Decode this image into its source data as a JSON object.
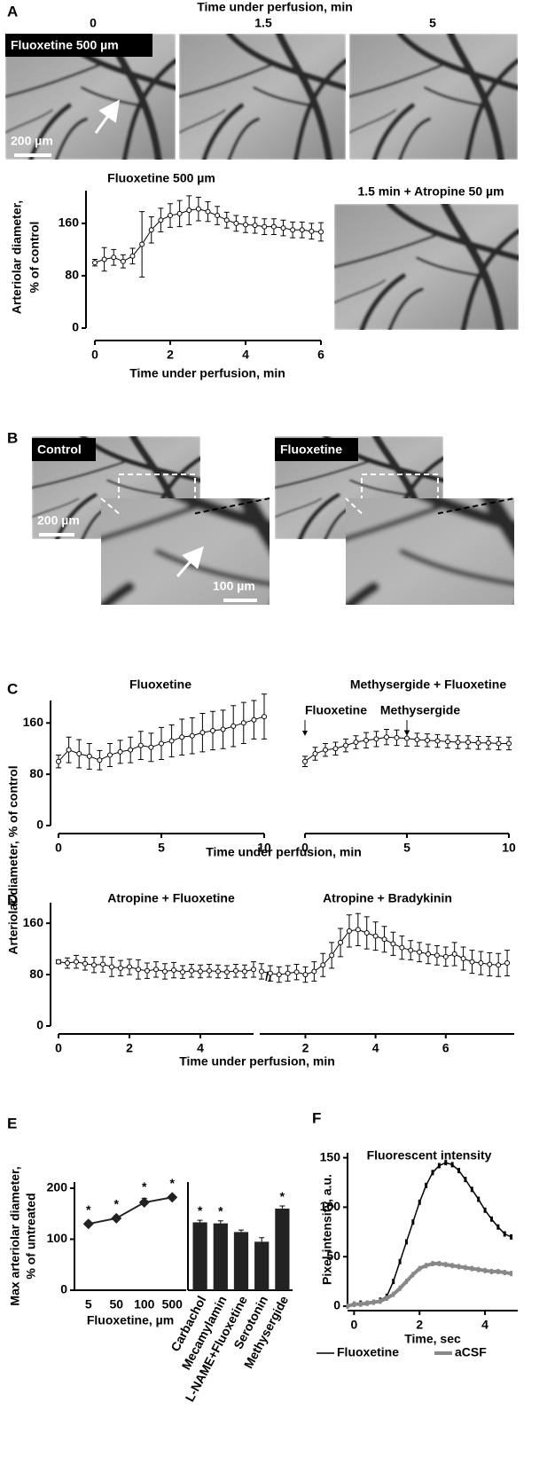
{
  "panel_labels": [
    "A",
    "B",
    "C",
    "D",
    "E",
    "F"
  ],
  "panel_a": {
    "title": "Time under perfusion, min",
    "time_labels": [
      "0",
      "1.5",
      "5"
    ],
    "image_label": "Fluoxetine 500 µm",
    "scale_bar": "200 µm",
    "inset_title": "1.5 min + Atropine 50 µm"
  },
  "panel_b": {
    "control_label": "Control",
    "fluoxetine_label": "Fluoxetine",
    "scale_bar": "200 µm",
    "inset_scale_bar": "100 µm"
  },
  "chart_data": [
    {
      "type": "errorline",
      "title": "Fluoxetine 500 µm",
      "y_label": "Arteriolar diameter,",
      "y_label_2": "% of control",
      "x_label": "Time under perfusion, min",
      "x": [
        0,
        0.25,
        0.5,
        0.75,
        1,
        1.25,
        1.5,
        1.75,
        2,
        2.25,
        2.5,
        2.75,
        3,
        3.25,
        3.5,
        3.75,
        4,
        4.25,
        4.5,
        4.75,
        5,
        5.25,
        5.5,
        5.75,
        6
      ],
      "values": [
        100,
        105,
        108,
        102,
        110,
        128,
        150,
        165,
        172,
        175,
        180,
        182,
        178,
        172,
        165,
        160,
        158,
        157,
        155,
        155,
        153,
        150,
        150,
        148,
        147
      ],
      "errors": [
        5,
        18,
        12,
        10,
        12,
        50,
        20,
        18,
        18,
        20,
        22,
        18,
        15,
        14,
        12,
        12,
        12,
        12,
        12,
        12,
        12,
        12,
        12,
        12,
        14
      ],
      "xlim": [
        0,
        6
      ],
      "ylim": [
        0,
        210
      ],
      "xticks": [
        0,
        2,
        4,
        6
      ],
      "yticks": [
        0,
        80,
        160
      ]
    },
    {
      "type": "errorline",
      "title": "Fluoxetine",
      "y_label": "Arteriolar diameter, % of control",
      "x_label": "Time under perfusion, min",
      "x": [
        0,
        0.5,
        1,
        1.5,
        2,
        2.5,
        3,
        3.5,
        4,
        4.5,
        5,
        5.5,
        6,
        6.5,
        7,
        7.5,
        8,
        8.5,
        9,
        9.5,
        10
      ],
      "values": [
        100,
        118,
        112,
        108,
        102,
        110,
        115,
        118,
        125,
        122,
        128,
        132,
        138,
        140,
        145,
        148,
        150,
        155,
        160,
        165,
        170
      ],
      "errors": [
        10,
        20,
        22,
        20,
        15,
        18,
        18,
        20,
        22,
        22,
        25,
        25,
        28,
        28,
        30,
        30,
        30,
        32,
        32,
        30,
        35
      ],
      "xlim": [
        0,
        10
      ],
      "ylim": [
        0,
        195
      ],
      "xticks": [
        0,
        5,
        10
      ],
      "yticks": [
        0,
        80,
        160
      ]
    },
    {
      "type": "errorline",
      "title": "Methysergide + Fluoxetine",
      "annotations": [
        {
          "text": "Fluoxetine",
          "x": 0
        },
        {
          "text": "Methysergide",
          "x": 5
        }
      ],
      "x": [
        0,
        0.5,
        1,
        1.5,
        2,
        2.5,
        3,
        3.5,
        4,
        4.5,
        5,
        5.5,
        6,
        6.5,
        7,
        7.5,
        8,
        8.5,
        9,
        9.5,
        10
      ],
      "values": [
        100,
        112,
        118,
        120,
        125,
        130,
        133,
        135,
        138,
        137,
        136,
        134,
        133,
        132,
        131,
        130,
        130,
        129,
        129,
        128,
        128
      ],
      "errors": [
        8,
        10,
        10,
        10,
        10,
        10,
        12,
        12,
        12,
        12,
        12,
        10,
        10,
        10,
        10,
        10,
        10,
        10,
        10,
        10,
        10
      ],
      "xlim": [
        0,
        10
      ],
      "ylim": [
        0,
        195
      ],
      "xticks": [
        0,
        5,
        10
      ]
    },
    {
      "type": "errorline",
      "title": "Atropine + Fluoxetine",
      "x_label": "Time under perfusion, min",
      "x": [
        0,
        0.25,
        0.5,
        0.75,
        1,
        1.25,
        1.5,
        1.75,
        2,
        2.25,
        2.5,
        2.75,
        3,
        3.25,
        3.5,
        3.75,
        4,
        4.25,
        4.5,
        4.75,
        5,
        5.25,
        5.5
      ],
      "values": [
        100,
        98,
        100,
        97,
        95,
        96,
        92,
        90,
        92,
        88,
        86,
        88,
        85,
        87,
        84,
        86,
        85,
        86,
        85,
        84,
        86,
        85,
        88
      ],
      "errors": [
        3,
        8,
        10,
        10,
        12,
        12,
        15,
        12,
        12,
        15,
        12,
        12,
        12,
        12,
        10,
        10,
        10,
        10,
        10,
        10,
        10,
        10,
        12
      ],
      "xlim": [
        0,
        5.5
      ],
      "ylim": [
        0,
        192
      ],
      "xticks": [
        0,
        2,
        4
      ],
      "yticks": [
        0,
        80,
        160
      ]
    },
    {
      "type": "errorline",
      "title": "Atropine + Bradykinin",
      "x": [
        0.75,
        1,
        1.25,
        1.5,
        1.75,
        2,
        2.25,
        2.5,
        2.75,
        3,
        3.25,
        3.5,
        3.75,
        4,
        4.25,
        4.5,
        4.75,
        5,
        5.25,
        5.5,
        5.75,
        6,
        6.25,
        6.5,
        6.75,
        7,
        7.25,
        7.5,
        7.75
      ],
      "values": [
        85,
        82,
        80,
        82,
        84,
        80,
        85,
        95,
        110,
        130,
        148,
        150,
        145,
        140,
        135,
        128,
        122,
        118,
        115,
        112,
        110,
        108,
        112,
        105,
        100,
        98,
        96,
        95,
        98
      ],
      "errors": [
        12,
        12,
        12,
        12,
        12,
        12,
        15,
        18,
        20,
        22,
        25,
        25,
        25,
        22,
        20,
        18,
        18,
        15,
        15,
        15,
        15,
        15,
        18,
        18,
        18,
        18,
        18,
        18,
        20
      ],
      "xlim": [
        0.7,
        7.95
      ],
      "ylim": [
        0,
        192
      ],
      "xticks": [
        2,
        4,
        6
      ]
    },
    {
      "type": "pointline",
      "y_label": "Max arteriolar diameter,",
      "y_label_2": "% of untreated",
      "x_label": "Fluoxetine, µm",
      "categories": [
        "5",
        "50",
        "100",
        "500"
      ],
      "values": [
        130,
        141,
        172,
        182
      ],
      "errors": [
        5,
        5,
        8,
        5
      ],
      "significance": [
        "*",
        "*",
        "*",
        "*"
      ],
      "ylim": [
        0,
        212
      ],
      "yticks": [
        0,
        100,
        200
      ],
      "color": "#222"
    },
    {
      "type": "bar",
      "categories": [
        "Carbachol",
        "Mecamylamin",
        "L-NAME+Fluoxetine",
        "Serotonin",
        "Methysergide"
      ],
      "values": [
        133,
        131,
        114,
        95,
        160
      ],
      "errors": [
        4,
        5,
        4,
        8,
        5
      ],
      "significance": [
        "*",
        "*",
        null,
        null,
        "*"
      ],
      "ylim": [
        0,
        212
      ],
      "color": "#222"
    },
    {
      "type": "line",
      "title": "Fluorescent intensity",
      "y_label": "Pixel intensity, a.u.",
      "x_label": "Time, sec",
      "x": [
        -0.2,
        0,
        0.2,
        0.4,
        0.6,
        0.8,
        1,
        1.2,
        1.4,
        1.6,
        1.8,
        2,
        2.2,
        2.4,
        2.6,
        2.8,
        3,
        3.2,
        3.4,
        3.6,
        3.8,
        4,
        4.2,
        4.4,
        4.6,
        4.8
      ],
      "series": [
        {
          "name": "Fluoxetine",
          "color": "#000000",
          "values": [
            0,
            2,
            3,
            3,
            4,
            6,
            10,
            25,
            45,
            65,
            85,
            105,
            122,
            135,
            142,
            145,
            143,
            137,
            128,
            118,
            108,
            97,
            88,
            80,
            73,
            70
          ]
        },
        {
          "name": "aCSF",
          "color": "#888888",
          "values": [
            0,
            2,
            2,
            3,
            4,
            5,
            8,
            12,
            18,
            25,
            32,
            38,
            41,
            43,
            43,
            42,
            41,
            40,
            39,
            38,
            37,
            36,
            35,
            35,
            34,
            33
          ]
        }
      ],
      "xlim": [
        -0.2,
        5
      ],
      "ylim": [
        0,
        155
      ],
      "xticks": [
        0,
        2,
        4
      ],
      "yticks": [
        0,
        50,
        100,
        150
      ]
    }
  ]
}
